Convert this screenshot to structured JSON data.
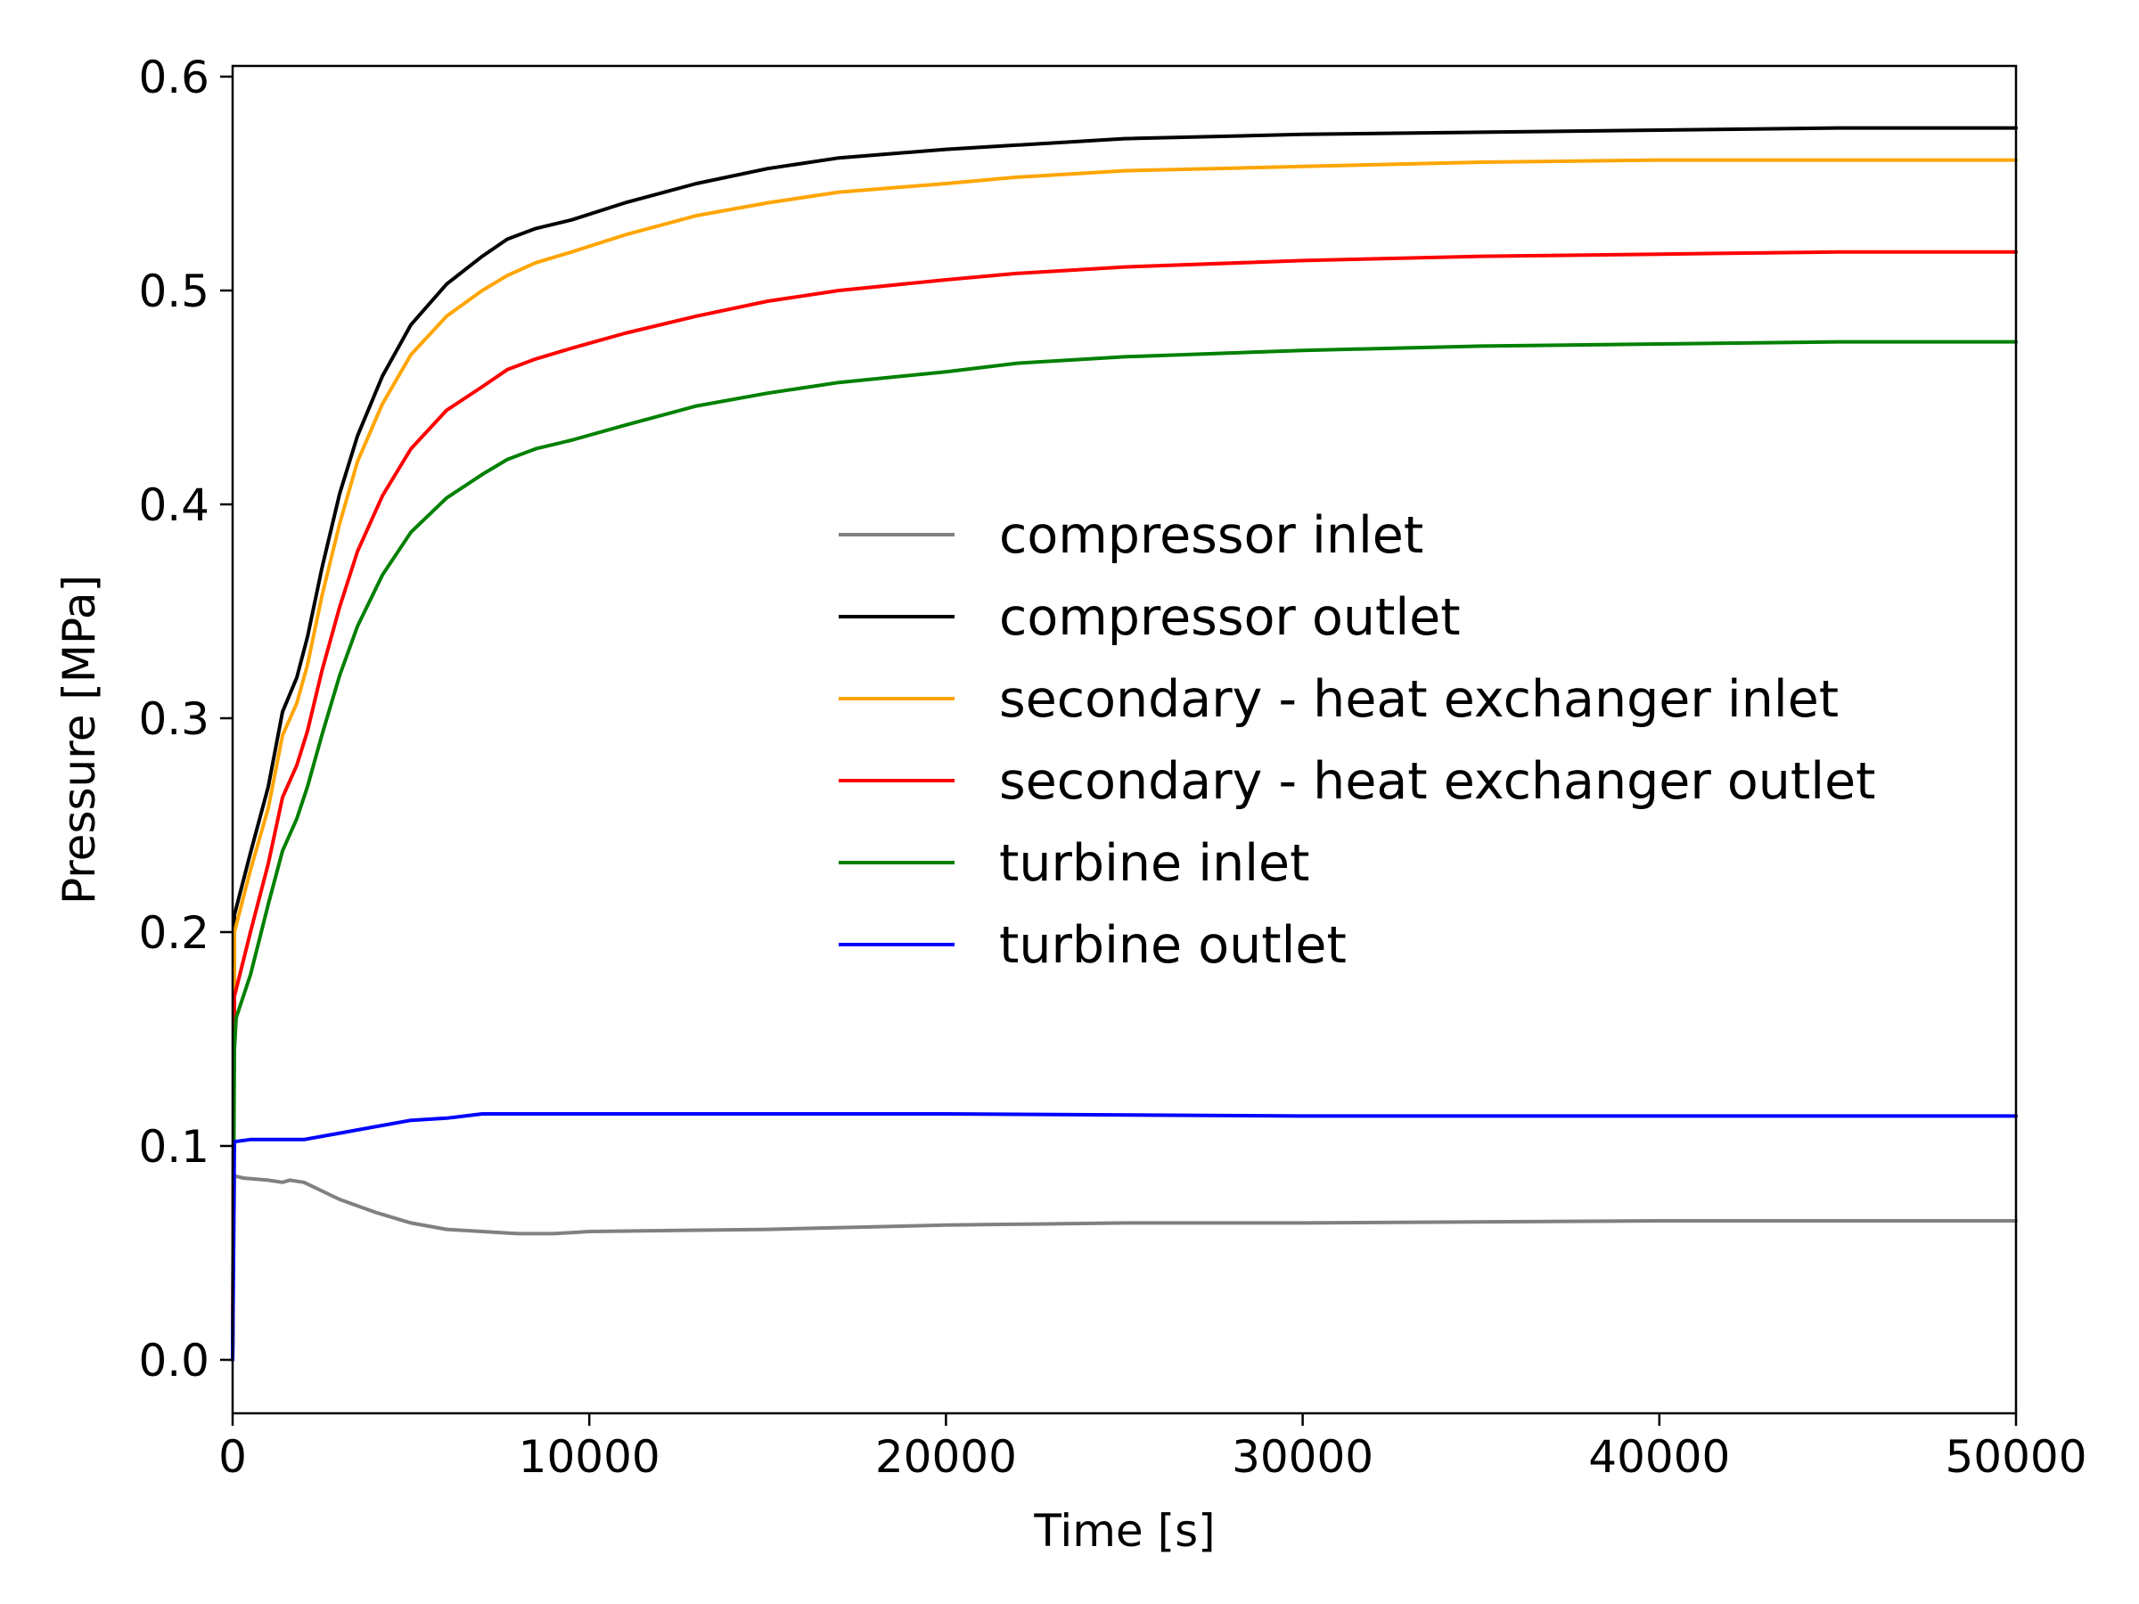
{
  "chart_data": {
    "type": "line",
    "title": "",
    "xlabel": "Time [s]",
    "ylabel": "Pressure [MPa]",
    "xlim": [
      0,
      50000
    ],
    "ylim": [
      -0.025,
      0.605
    ],
    "xticks": [
      0,
      10000,
      20000,
      30000,
      40000,
      50000
    ],
    "xtick_labels": [
      "0",
      "10000",
      "20000",
      "30000",
      "40000",
      "50000"
    ],
    "yticks": [
      0.0,
      0.1,
      0.2,
      0.3,
      0.4,
      0.5,
      0.6
    ],
    "ytick_labels": [
      "0.0",
      "0.1",
      "0.2",
      "0.3",
      "0.4",
      "0.5",
      "0.6"
    ],
    "grid": false,
    "legend_position": "center-right",
    "series": [
      {
        "name": "compressor inlet",
        "color": "#808080",
        "points": [
          [
            0,
            0.0
          ],
          [
            50,
            0.086
          ],
          [
            300,
            0.085
          ],
          [
            1000,
            0.084
          ],
          [
            1400,
            0.083
          ],
          [
            1600,
            0.084
          ],
          [
            2000,
            0.083
          ],
          [
            3000,
            0.075
          ],
          [
            4000,
            0.069
          ],
          [
            5000,
            0.064
          ],
          [
            6000,
            0.061
          ],
          [
            7000,
            0.06
          ],
          [
            8000,
            0.059
          ],
          [
            9000,
            0.059
          ],
          [
            10000,
            0.06
          ],
          [
            15000,
            0.061
          ],
          [
            20000,
            0.063
          ],
          [
            25000,
            0.064
          ],
          [
            30000,
            0.064
          ],
          [
            40000,
            0.065
          ],
          [
            50000,
            0.065
          ]
        ]
      },
      {
        "name": "compressor outlet",
        "color": "#000000",
        "points": [
          [
            0,
            0.0
          ],
          [
            50,
            0.208
          ],
          [
            500,
            0.237
          ],
          [
            1000,
            0.268
          ],
          [
            1400,
            0.303
          ],
          [
            1800,
            0.319
          ],
          [
            2100,
            0.338
          ],
          [
            2500,
            0.37
          ],
          [
            3000,
            0.405
          ],
          [
            3500,
            0.432
          ],
          [
            4200,
            0.46
          ],
          [
            5000,
            0.484
          ],
          [
            6000,
            0.503
          ],
          [
            7000,
            0.516
          ],
          [
            7700,
            0.524
          ],
          [
            8500,
            0.529
          ],
          [
            9500,
            0.533
          ],
          [
            11000,
            0.541
          ],
          [
            13000,
            0.55
          ],
          [
            15000,
            0.557
          ],
          [
            17000,
            0.562
          ],
          [
            20000,
            0.566
          ],
          [
            22000,
            0.568
          ],
          [
            25000,
            0.571
          ],
          [
            30000,
            0.573
          ],
          [
            35000,
            0.574
          ],
          [
            40000,
            0.575
          ],
          [
            45000,
            0.576
          ],
          [
            50000,
            0.576
          ]
        ]
      },
      {
        "name": "secondary - heat exchanger inlet",
        "color": "#ffa500",
        "points": [
          [
            0,
            0.0
          ],
          [
            50,
            0.2
          ],
          [
            500,
            0.229
          ],
          [
            1000,
            0.258
          ],
          [
            1400,
            0.292
          ],
          [
            1800,
            0.307
          ],
          [
            2100,
            0.325
          ],
          [
            2500,
            0.357
          ],
          [
            3000,
            0.391
          ],
          [
            3500,
            0.42
          ],
          [
            4200,
            0.447
          ],
          [
            5000,
            0.47
          ],
          [
            6000,
            0.488
          ],
          [
            7000,
            0.5
          ],
          [
            7700,
            0.507
          ],
          [
            8500,
            0.513
          ],
          [
            9500,
            0.518
          ],
          [
            11000,
            0.526
          ],
          [
            13000,
            0.535
          ],
          [
            15000,
            0.541
          ],
          [
            17000,
            0.546
          ],
          [
            20000,
            0.55
          ],
          [
            22000,
            0.553
          ],
          [
            25000,
            0.556
          ],
          [
            30000,
            0.558
          ],
          [
            35000,
            0.56
          ],
          [
            40000,
            0.561
          ],
          [
            45000,
            0.561
          ],
          [
            50000,
            0.561
          ]
        ]
      },
      {
        "name": "secondary - heat exchanger outlet",
        "color": "#ff0000",
        "points": [
          [
            0,
            0.0
          ],
          [
            50,
            0.17
          ],
          [
            500,
            0.2
          ],
          [
            1000,
            0.232
          ],
          [
            1400,
            0.263
          ],
          [
            1800,
            0.278
          ],
          [
            2100,
            0.294
          ],
          [
            2500,
            0.322
          ],
          [
            3000,
            0.352
          ],
          [
            3500,
            0.378
          ],
          [
            4200,
            0.404
          ],
          [
            5000,
            0.426
          ],
          [
            6000,
            0.444
          ],
          [
            7000,
            0.455
          ],
          [
            7700,
            0.463
          ],
          [
            8500,
            0.468
          ],
          [
            9500,
            0.473
          ],
          [
            11000,
            0.48
          ],
          [
            13000,
            0.488
          ],
          [
            15000,
            0.495
          ],
          [
            17000,
            0.5
          ],
          [
            20000,
            0.505
          ],
          [
            22000,
            0.508
          ],
          [
            25000,
            0.511
          ],
          [
            30000,
            0.514
          ],
          [
            35000,
            0.516
          ],
          [
            40000,
            0.517
          ],
          [
            45000,
            0.518
          ],
          [
            50000,
            0.518
          ]
        ]
      },
      {
        "name": "turbine inlet",
        "color": "#008000",
        "points": [
          [
            0,
            0.0
          ],
          [
            50,
            0.145
          ],
          [
            100,
            0.16
          ],
          [
            500,
            0.18
          ],
          [
            1000,
            0.213
          ],
          [
            1400,
            0.238
          ],
          [
            1800,
            0.253
          ],
          [
            2100,
            0.268
          ],
          [
            2500,
            0.292
          ],
          [
            3000,
            0.32
          ],
          [
            3500,
            0.343
          ],
          [
            4200,
            0.367
          ],
          [
            5000,
            0.387
          ],
          [
            6000,
            0.403
          ],
          [
            7000,
            0.414
          ],
          [
            7700,
            0.421
          ],
          [
            8500,
            0.426
          ],
          [
            9500,
            0.43
          ],
          [
            11000,
            0.437
          ],
          [
            13000,
            0.446
          ],
          [
            15000,
            0.452
          ],
          [
            17000,
            0.457
          ],
          [
            20000,
            0.462
          ],
          [
            22000,
            0.466
          ],
          [
            25000,
            0.469
          ],
          [
            30000,
            0.472
          ],
          [
            35000,
            0.474
          ],
          [
            40000,
            0.475
          ],
          [
            45000,
            0.476
          ],
          [
            50000,
            0.476
          ]
        ]
      },
      {
        "name": "turbine outlet",
        "color": "#0000ff",
        "points": [
          [
            0,
            0.0
          ],
          [
            50,
            0.102
          ],
          [
            500,
            0.103
          ],
          [
            1500,
            0.103
          ],
          [
            2000,
            0.103
          ],
          [
            3000,
            0.106
          ],
          [
            4000,
            0.109
          ],
          [
            5000,
            0.112
          ],
          [
            6000,
            0.113
          ],
          [
            7000,
            0.115
          ],
          [
            8000,
            0.115
          ],
          [
            10000,
            0.115
          ],
          [
            15000,
            0.115
          ],
          [
            20000,
            0.115
          ],
          [
            30000,
            0.114
          ],
          [
            40000,
            0.114
          ],
          [
            50000,
            0.114
          ]
        ]
      }
    ]
  }
}
